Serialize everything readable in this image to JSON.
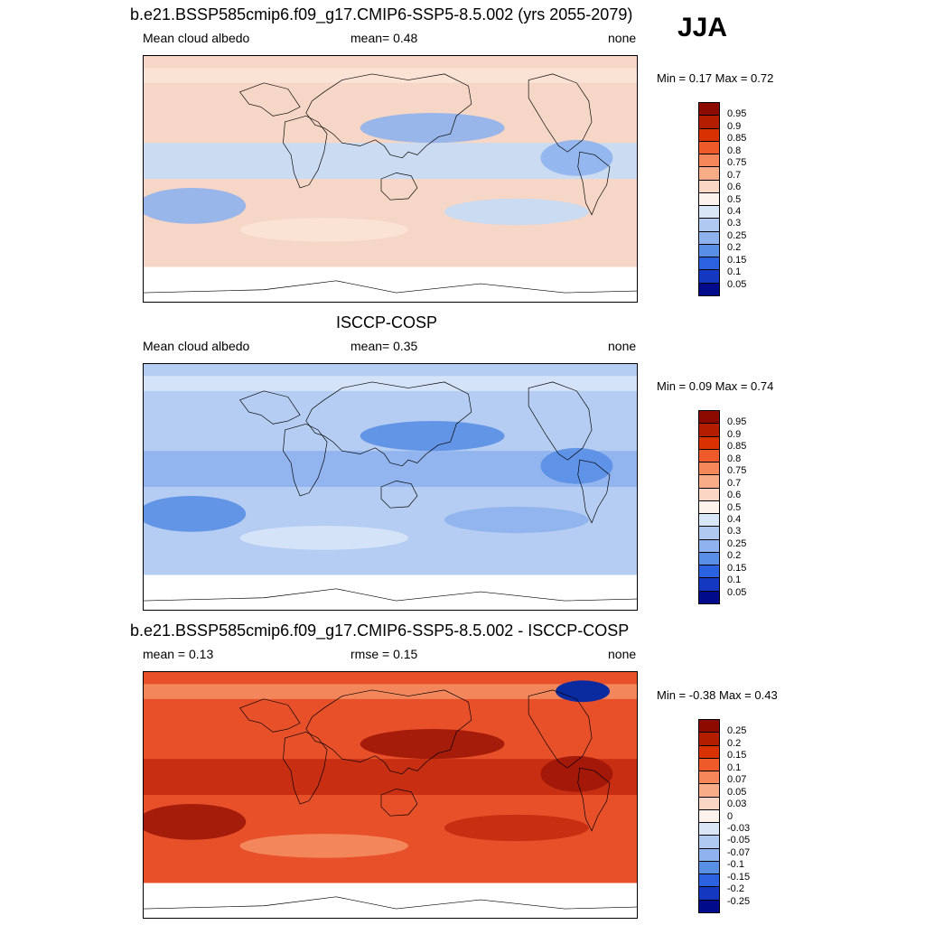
{
  "season": "JJA",
  "panels": [
    {
      "title": "b.e21.BSSP585cmip6.f09_g17.CMIP6-SSP5-8.5.002 (yrs 2055-2079)",
      "left_label": "Mean cloud albedo",
      "center_label": "mean=   0.48",
      "right_label": "none",
      "min_max": "Min =   0.17 Max =   0.72",
      "palette": "abs",
      "levels": [
        "0.95",
        "0.9",
        "0.85",
        "0.8",
        "0.75",
        "0.7",
        "0.6",
        "0.5",
        "0.4",
        "0.3",
        "0.25",
        "0.2",
        "0.15",
        "0.1",
        "0.05"
      ],
      "fill_color": "#f6d6c6",
      "patches": [
        {
          "c": "#c6dbf5",
          "note": "subtropical bands"
        },
        {
          "c": "#8fb3ee",
          "note": "regional lows"
        },
        {
          "c": "#fbe3d6",
          "note": "storm tracks"
        }
      ]
    },
    {
      "title": "ISCCP-COSP",
      "left_label": "Mean cloud albedo",
      "center_label": "mean=   0.35",
      "right_label": "none",
      "min_max": "Min =   0.09 Max =   0.74",
      "palette": "abs",
      "levels": [
        "0.95",
        "0.9",
        "0.85",
        "0.8",
        "0.75",
        "0.7",
        "0.6",
        "0.5",
        "0.4",
        "0.3",
        "0.25",
        "0.2",
        "0.15",
        "0.1",
        "0.05"
      ],
      "fill_color": "#b5cdf2",
      "patches": [
        {
          "c": "#8fb3ee",
          "note": "tropics"
        },
        {
          "c": "#5a8fe6",
          "note": "deserts"
        },
        {
          "c": "#d8e6f8",
          "note": "mid-latitudes"
        }
      ]
    },
    {
      "title": "b.e21.BSSP585cmip6.f09_g17.CMIP6-SSP5-8.5.002 - ISCCP-COSP",
      "left_label": "mean =   0.13",
      "center_label": "rmse =   0.15",
      "right_label": "none",
      "min_max": "Min = -0.38 Max =   0.43",
      "palette": "diff",
      "levels": [
        "0.25",
        "0.2",
        "0.15",
        "0.1",
        "0.07",
        "0.05",
        "0.03",
        "0",
        "-0.03",
        "-0.05",
        "-0.07",
        "-0.1",
        "-0.15",
        "-0.2",
        "-0.25"
      ],
      "fill_color": "#e8502a",
      "patches": [
        {
          "c": "#c42a10",
          "note": "southern oceans"
        },
        {
          "c": "#9e1608",
          "note": "maxima"
        },
        {
          "c": "#f58c60",
          "note": "minor"
        },
        {
          "c": "#3a64d8",
          "note": "negative"
        }
      ]
    }
  ],
  "colors": {
    "abs": [
      "#8c0a00",
      "#b41e00",
      "#d83200",
      "#ee5a2a",
      "#f5875a",
      "#f8ac88",
      "#fcd6c4",
      "#fdf2ec",
      "#d8e6f8",
      "#b0c9f0",
      "#8fb3ee",
      "#5a8fe6",
      "#2a62e0",
      "#1438c0",
      "#000b8c"
    ],
    "diff": [
      "#8c0a00",
      "#b41e00",
      "#d83200",
      "#ee5a2a",
      "#f5875a",
      "#f8ac88",
      "#fcd6c4",
      "#fdf2ec",
      "#d8e6f8",
      "#b0c9f0",
      "#8fb3ee",
      "#5a8fe6",
      "#2a62e0",
      "#1438c0",
      "#000b8c"
    ]
  },
  "chart_data": [
    {
      "type": "heatmap",
      "title": "b.e21.BSSP585cmip6.f09_g17.CMIP6-SSP5-8.5.002 (yrs 2055-2079)",
      "variable": "Mean cloud albedo",
      "mean": 0.48,
      "min": 0.17,
      "max": 0.72,
      "units": "none",
      "contour_levels": [
        0.05,
        0.1,
        0.15,
        0.2,
        0.25,
        0.3,
        0.4,
        0.5,
        0.6,
        0.7,
        0.75,
        0.8,
        0.85,
        0.9,
        0.95
      ]
    },
    {
      "type": "heatmap",
      "title": "ISCCP-COSP",
      "variable": "Mean cloud albedo",
      "mean": 0.35,
      "min": 0.09,
      "max": 0.74,
      "units": "none",
      "contour_levels": [
        0.05,
        0.1,
        0.15,
        0.2,
        0.25,
        0.3,
        0.4,
        0.5,
        0.6,
        0.7,
        0.75,
        0.8,
        0.85,
        0.9,
        0.95
      ]
    },
    {
      "type": "heatmap",
      "title": "b.e21.BSSP585cmip6.f09_g17.CMIP6-SSP5-8.5.002 - ISCCP-COSP",
      "variable": "difference",
      "mean": 0.13,
      "rmse": 0.15,
      "min": -0.38,
      "max": 0.43,
      "units": "none",
      "contour_levels": [
        -0.25,
        -0.2,
        -0.15,
        -0.1,
        -0.07,
        -0.05,
        -0.03,
        0,
        0.03,
        0.05,
        0.07,
        0.1,
        0.15,
        0.2,
        0.25
      ]
    }
  ]
}
